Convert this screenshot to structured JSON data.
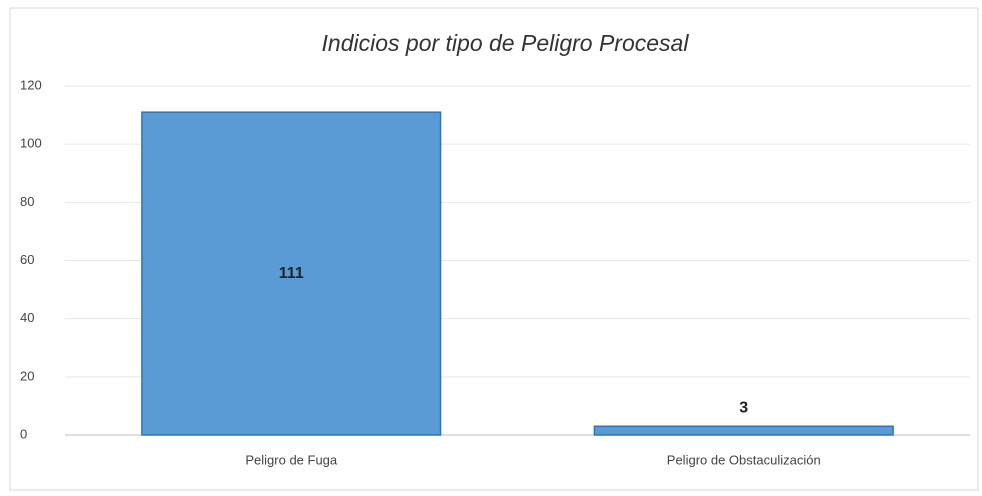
{
  "chart_data": {
    "type": "bar",
    "title": "Indicios por tipo de Peligro Procesal",
    "categories": [
      "Peligro de Fuga",
      "Peligro de Obstaculización"
    ],
    "values": [
      111,
      3
    ],
    "color": "#5b9bd5",
    "ylim": [
      0,
      120
    ],
    "yticks": [
      0,
      20,
      40,
      60,
      80,
      100,
      120
    ],
    "grid": true
  }
}
